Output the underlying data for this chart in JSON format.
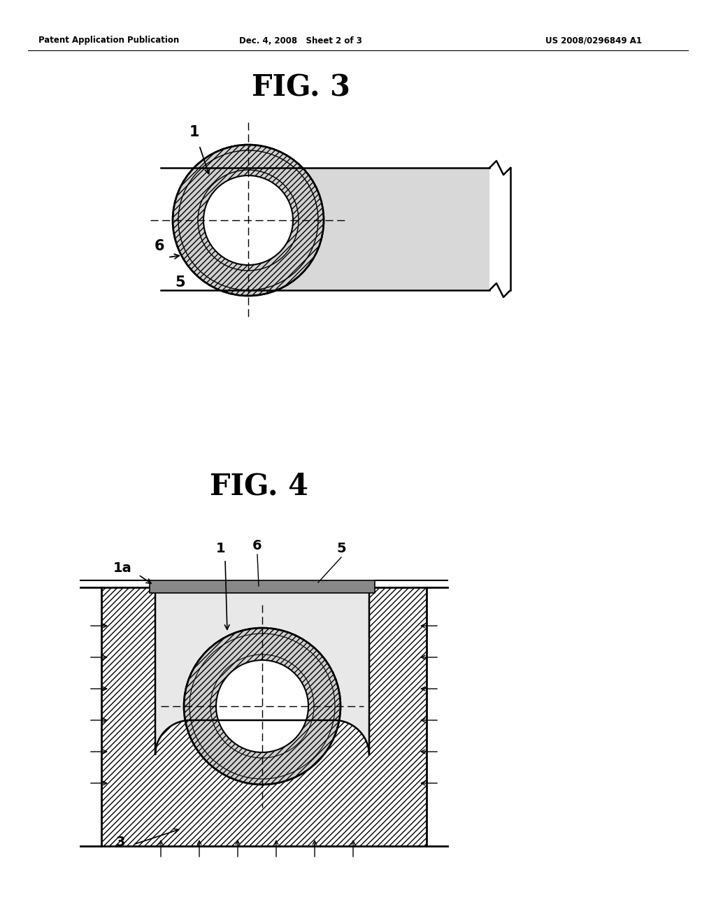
{
  "background_color": "#ffffff",
  "header_left": "Patent Application Publication",
  "header_center": "Dec. 4, 2008   Sheet 2 of 3",
  "header_right": "US 2008/0296849 A1",
  "fig3_title": "FIG. 3",
  "fig4_title": "FIG. 4",
  "line_color": "#000000",
  "gray_fill": "#d8d8d8",
  "light_gray": "#e8e8e8",
  "hatch_gray": "#c0c0c0"
}
